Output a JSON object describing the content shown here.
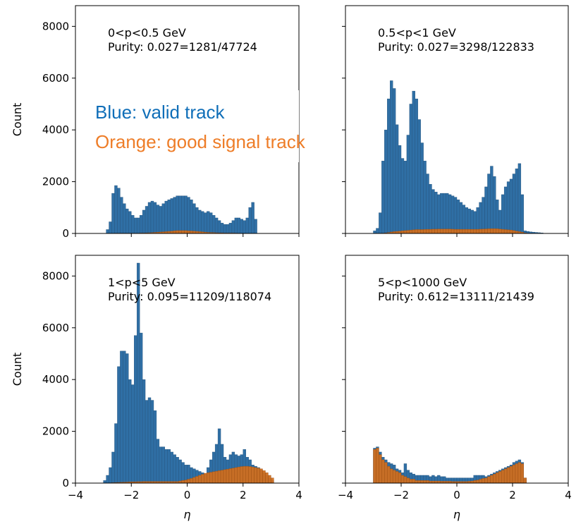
{
  "chart_data": [
    {
      "type": "histogram",
      "panel": "top-left",
      "annotation": [
        "0<p<0.5 GeV",
        "Purity: 0.027=1281/47724"
      ],
      "xlabel": "",
      "ylabel": "Count",
      "xlim": [
        -4,
        4
      ],
      "ylim": [
        0,
        8800
      ],
      "x_bin_start": -2.9,
      "x_bin_width": 0.1,
      "series": [
        {
          "name": "valid track",
          "color": "#2f6fa5",
          "values": [
            150,
            450,
            1550,
            1850,
            1750,
            1400,
            1150,
            950,
            850,
            700,
            600,
            600,
            700,
            900,
            1050,
            1200,
            1250,
            1200,
            1100,
            1050,
            1150,
            1250,
            1300,
            1350,
            1400,
            1450,
            1450,
            1450,
            1450,
            1400,
            1300,
            1150,
            1000,
            900,
            850,
            800,
            850,
            800,
            700,
            600,
            500,
            400,
            350,
            350,
            400,
            500,
            600,
            600,
            550,
            500,
            600,
            1000,
            1200,
            550
          ]
        },
        {
          "name": "good signal track",
          "color": "#cf6e1f",
          "values": [
            0,
            0,
            5,
            10,
            10,
            10,
            10,
            10,
            10,
            10,
            10,
            10,
            15,
            15,
            20,
            25,
            30,
            40,
            45,
            55,
            60,
            70,
            80,
            90,
            100,
            110,
            110,
            110,
            110,
            100,
            95,
            90,
            80,
            70,
            60,
            50,
            40,
            35,
            30,
            25,
            20,
            20,
            15,
            15,
            15,
            15,
            12,
            10,
            8,
            8,
            6,
            5,
            5,
            3
          ]
        }
      ]
    },
    {
      "type": "histogram",
      "panel": "top-right",
      "annotation": [
        "0.5<p<1 GeV",
        "Purity: 0.027=3298/122833"
      ],
      "xlabel": "",
      "ylabel": "",
      "xlim": [
        -4,
        4
      ],
      "ylim": [
        0,
        8800
      ],
      "x_bin_start": -3.0,
      "x_bin_width": 0.1,
      "series": [
        {
          "name": "valid track",
          "color": "#2f6fa5",
          "values": [
            100,
            200,
            800,
            2800,
            4000,
            5200,
            5900,
            5600,
            4200,
            3400,
            2900,
            2800,
            3800,
            5000,
            5500,
            5200,
            4400,
            3500,
            2800,
            2300,
            1900,
            1700,
            1600,
            1500,
            1550,
            1550,
            1550,
            1500,
            1450,
            1400,
            1300,
            1200,
            1100,
            1000,
            950,
            900,
            850,
            1000,
            1200,
            1400,
            1800,
            2300,
            2600,
            2200,
            1300,
            900,
            1500,
            1800,
            2000,
            2100,
            2300,
            2500,
            2700,
            1500,
            100,
            80,
            60,
            50,
            40,
            30,
            20
          ]
        },
        {
          "name": "good signal track",
          "color": "#cf6e1f",
          "values": [
            0,
            0,
            5,
            10,
            20,
            35,
            55,
            70,
            80,
            90,
            100,
            110,
            120,
            130,
            140,
            150,
            150,
            150,
            155,
            160,
            160,
            165,
            165,
            170,
            170,
            170,
            170,
            170,
            165,
            160,
            160,
            160,
            160,
            160,
            160,
            160,
            160,
            160,
            165,
            170,
            175,
            180,
            185,
            185,
            180,
            170,
            160,
            150,
            140,
            130,
            110,
            90,
            70,
            50,
            20,
            10,
            5,
            3,
            2,
            1,
            0
          ]
        }
      ]
    },
    {
      "type": "histogram",
      "panel": "bottom-left",
      "annotation": [
        "1<p<5 GeV",
        "Purity: 0.095=11209/118074"
      ],
      "xlabel": "η",
      "ylabel": "Count",
      "xlim": [
        -4,
        4
      ],
      "ylim": [
        0,
        8800
      ],
      "x_bin_start": -3.0,
      "x_bin_width": 0.1,
      "series": [
        {
          "name": "valid track",
          "color": "#2f6fa5",
          "values": [
            100,
            300,
            600,
            1200,
            2300,
            4500,
            5100,
            5100,
            5000,
            4000,
            3800,
            5700,
            8500,
            5800,
            4000,
            3200,
            3300,
            3200,
            2800,
            1700,
            1400,
            1400,
            1300,
            1300,
            1200,
            1100,
            1000,
            900,
            800,
            700,
            700,
            600,
            550,
            500,
            450,
            400,
            350,
            600,
            900,
            1200,
            1500,
            2100,
            1500,
            1000,
            900,
            1100,
            1200,
            1100,
            1050,
            1100,
            1300,
            1000,
            900,
            700,
            650,
            600,
            500,
            400,
            300,
            200,
            100
          ]
        },
        {
          "name": "good signal track",
          "color": "#cf6e1f",
          "values": [
            5,
            8,
            10,
            15,
            20,
            25,
            30,
            35,
            40,
            45,
            50,
            50,
            55,
            55,
            60,
            60,
            60,
            60,
            60,
            60,
            60,
            60,
            60,
            60,
            60,
            60,
            60,
            80,
            100,
            120,
            150,
            180,
            220,
            260,
            300,
            340,
            380,
            400,
            420,
            440,
            460,
            480,
            500,
            520,
            540,
            560,
            580,
            600,
            620,
            640,
            650,
            650,
            640,
            620,
            600,
            580,
            550,
            480,
            400,
            300,
            200
          ]
        }
      ]
    },
    {
      "type": "histogram",
      "panel": "bottom-right",
      "annotation": [
        "5<p<1000 GeV",
        "Purity: 0.612=13111/21439"
      ],
      "xlabel": "η",
      "ylabel": "",
      "xlim": [
        -4,
        4
      ],
      "ylim": [
        0,
        8800
      ],
      "x_bin_start": -3.0,
      "x_bin_width": 0.1,
      "series": [
        {
          "name": "valid track",
          "color": "#2f6fa5",
          "values": [
            1350,
            1400,
            1200,
            1000,
            900,
            800,
            750,
            700,
            550,
            500,
            400,
            750,
            500,
            400,
            350,
            300,
            300,
            300,
            300,
            300,
            250,
            300,
            250,
            300,
            250,
            250,
            200,
            200,
            200,
            200,
            200,
            200,
            200,
            200,
            200,
            200,
            300,
            300,
            300,
            300,
            250,
            300,
            350,
            400,
            450,
            500,
            550,
            600,
            650,
            700,
            800,
            850,
            900,
            800,
            200,
            0
          ]
        },
        {
          "name": "good signal track",
          "color": "#cf6e1f",
          "values": [
            1300,
            1350,
            1100,
            900,
            800,
            650,
            550,
            500,
            450,
            400,
            300,
            250,
            200,
            150,
            150,
            100,
            100,
            100,
            100,
            100,
            80,
            80,
            80,
            80,
            70,
            70,
            70,
            70,
            60,
            60,
            60,
            60,
            60,
            60,
            70,
            80,
            100,
            120,
            150,
            180,
            200,
            250,
            300,
            350,
            400,
            450,
            500,
            550,
            600,
            650,
            700,
            750,
            800,
            750,
            200,
            0
          ]
        }
      ]
    }
  ],
  "overlay": {
    "line1": "Blue: valid track",
    "line2": "Orange: good signal track",
    "color1": "#0f6eb8",
    "color2": "#ee7d28"
  }
}
